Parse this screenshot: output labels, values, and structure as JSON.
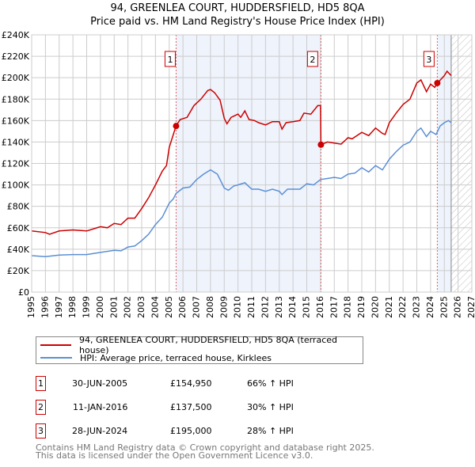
{
  "title": "94, GREENLEA COURT, HUDDERSFIELD, HD5 8QA",
  "subtitle": "Price paid vs. HM Land Registry's House Price Index (HPI)",
  "chart_data": {
    "type": "line",
    "title": "94, GREENLEA COURT, HUDDERSFIELD, HD5 8QA",
    "subtitle": "Price paid vs. HM Land Registry's House Price Index (HPI)",
    "xlim": [
      1995,
      2027
    ],
    "ylim": [
      0,
      240000
    ],
    "yticks": [
      "£0",
      "£20K",
      "£40K",
      "£60K",
      "£80K",
      "£100K",
      "£120K",
      "£140K",
      "£160K",
      "£180K",
      "£200K",
      "£220K",
      "£240K"
    ],
    "xticks": [
      "1995",
      "1996",
      "1997",
      "1998",
      "1999",
      "2000",
      "2001",
      "2002",
      "2003",
      "2004",
      "2005",
      "2006",
      "2007",
      "2008",
      "2009",
      "2010",
      "2011",
      "2012",
      "2013",
      "2014",
      "2015",
      "2016",
      "2017",
      "2018",
      "2019",
      "2020",
      "2021",
      "2022",
      "2023",
      "2024",
      "2025",
      "2026",
      "2027"
    ],
    "grid": true,
    "colors": {
      "property": "#cc0000",
      "hpi": "#5b8fd4",
      "shade": "#eef3fc",
      "vline": "#e06060"
    },
    "shaded_periods": [
      [
        2005.5,
        2016.03
      ],
      [
        2024.49,
        2025.5
      ]
    ],
    "forecast_hatch_from": 2025.5,
    "series": [
      {
        "name": "94, GREENLEA COURT, HUDDERSFIELD, HD5 8QA (terraced house)",
        "key": "property",
        "x": [
          1995,
          1996,
          1996.3,
          1997,
          1998,
          1999,
          1999.5,
          2000,
          2000.5,
          2001,
          2001.5,
          2002,
          2002.5,
          2003,
          2003.5,
          2004,
          2004.5,
          2004.8,
          2005,
          2005.2,
          2005.5,
          2005.8,
          2006.3,
          2006.8,
          2007.3,
          2007.8,
          2008,
          2008.3,
          2008.7,
          2009,
          2009.2,
          2009.5,
          2010,
          2010.2,
          2010.5,
          2010.8,
          2011.2,
          2011.5,
          2012,
          2012.5,
          2013,
          2013.2,
          2013.5,
          2014,
          2014.5,
          2014.8,
          2015.3,
          2015.8,
          2016.0,
          2016.03,
          2016.5,
          2017,
          2017.5,
          2018,
          2018.3,
          2019,
          2019.5,
          2020,
          2020.5,
          2020.7,
          2021,
          2021.5,
          2022,
          2022.5,
          2023,
          2023.3,
          2023.7,
          2024,
          2024.3,
          2024.5,
          2025,
          2025.2,
          2025.5
        ],
        "y": [
          57,
          55.5,
          54,
          57,
          58,
          57,
          59,
          61,
          60,
          64,
          63,
          69,
          69,
          78,
          88,
          100,
          113,
          118,
          135,
          143,
          155,
          161,
          163,
          174,
          180,
          188,
          189,
          186,
          179,
          162,
          157,
          163,
          166,
          163,
          169,
          161,
          160,
          158,
          156,
          159,
          159,
          152,
          158,
          159,
          160,
          167,
          166,
          174,
          174,
          137.5,
          140,
          139,
          138,
          144,
          143,
          149,
          146,
          153,
          148,
          147,
          158,
          167,
          175,
          180,
          195,
          198,
          187,
          194,
          191,
          195,
          202,
          206,
          202
        ]
      },
      {
        "name": "HPI: Average price, terraced house, Kirklees",
        "key": "hpi",
        "x": [
          1995,
          1996,
          1997,
          1998,
          1999,
          2000,
          2001,
          2001.5,
          2002,
          2002.5,
          2003,
          2003.5,
          2004,
          2004.5,
          2005,
          2005.3,
          2005.5,
          2006,
          2006.5,
          2007,
          2007.5,
          2008,
          2008.5,
          2009,
          2009.3,
          2009.7,
          2010,
          2010.5,
          2011,
          2011.5,
          2012,
          2012.5,
          2013,
          2013.2,
          2013.6,
          2014,
          2014.5,
          2015,
          2015.5,
          2016,
          2016.5,
          2017,
          2017.5,
          2018,
          2018.5,
          2019,
          2019.5,
          2020,
          2020.5,
          2021,
          2021.5,
          2022,
          2022.5,
          2023,
          2023.3,
          2023.7,
          2024,
          2024.4,
          2024.7,
          2025,
          2025.3,
          2025.5
        ],
        "y": [
          34,
          33,
          34.5,
          35,
          35,
          37,
          39,
          38.5,
          42,
          43,
          48,
          54,
          63,
          70,
          83,
          87,
          92,
          97,
          98,
          105,
          110,
          114,
          110,
          97,
          95,
          99,
          100,
          102,
          96,
          96,
          94,
          96,
          94,
          91,
          96,
          96,
          96,
          101,
          100,
          105,
          106,
          107,
          106,
          110,
          111,
          116,
          112,
          118,
          114,
          124,
          131,
          137,
          140,
          150,
          153,
          145,
          150,
          147,
          155,
          158,
          160,
          158
        ]
      }
    ],
    "y_unit": "thousands GBP",
    "sales": [
      {
        "label": "1",
        "x": 2005.5,
        "y": 154.95,
        "date": "30-JUN-2005",
        "price": "£154,950",
        "hpi": "66% ↑ HPI"
      },
      {
        "label": "2",
        "x": 2016.03,
        "y": 137.5,
        "date": "11-JAN-2016",
        "price": "£137,500",
        "hpi": "30% ↑ HPI"
      },
      {
        "label": "3",
        "x": 2024.49,
        "y": 195,
        "date": "28-JUN-2024",
        "price": "£195,000",
        "hpi": "28% ↑ HPI"
      }
    ],
    "legend_position": "below"
  },
  "footer": {
    "line1": "Contains HM Land Registry data © Crown copyright and database right 2025.",
    "line2": "This data is licensed under the Open Government Licence v3.0."
  }
}
